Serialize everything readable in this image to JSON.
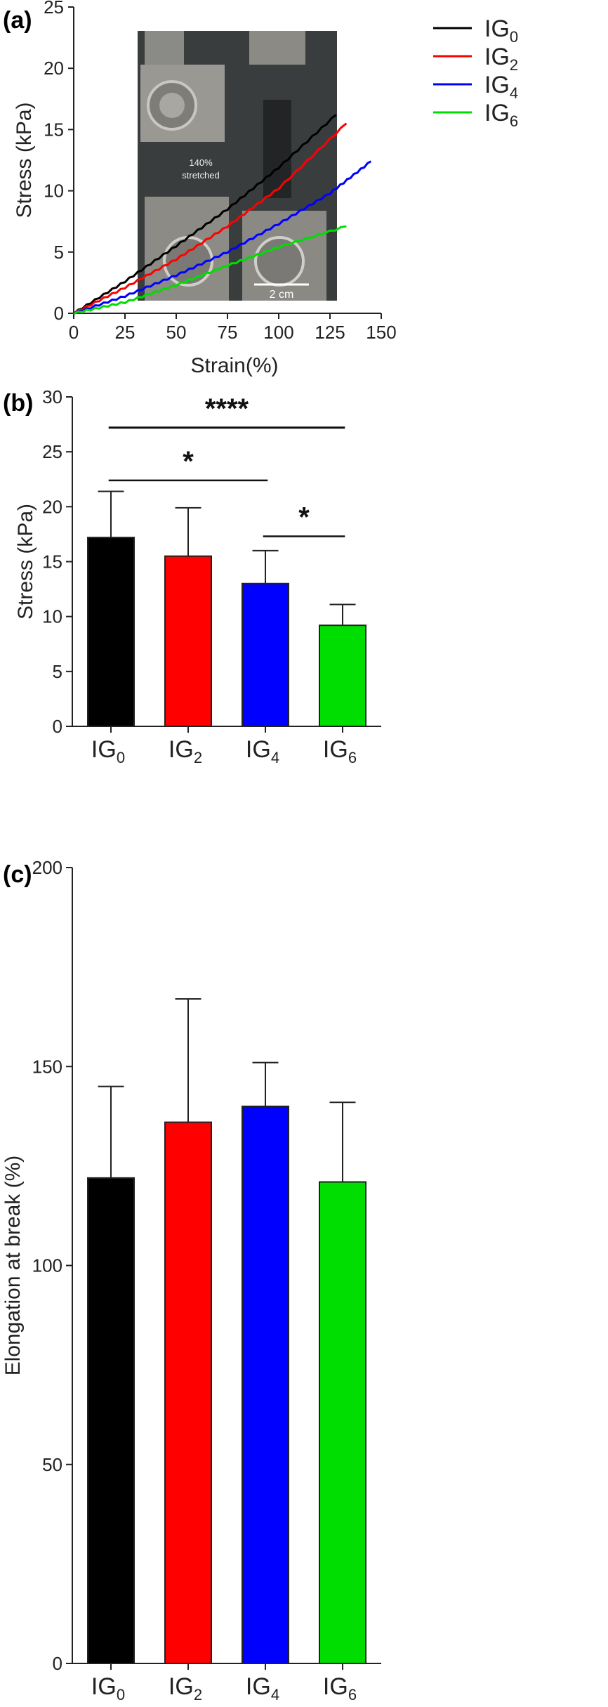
{
  "colors": {
    "IG0": "#000000",
    "IG2": "#ff0000",
    "IG4": "#0000ff",
    "IG6": "#00dd00"
  },
  "panels": {
    "a": {
      "label": "(a)"
    },
    "b": {
      "label": "(b)"
    },
    "c": {
      "label": "(c)"
    }
  },
  "inset": {
    "caption_line1": "140%",
    "caption_line2": "stretched",
    "scale_label": "2 cm"
  },
  "chart_data": [
    {
      "type": "line",
      "xlabel": "Strain(%)",
      "ylabel": "Stress (kPa)",
      "xlim": [
        0,
        150
      ],
      "ylim": [
        0,
        25
      ],
      "xticks": [
        0,
        25,
        50,
        75,
        100,
        125,
        150
      ],
      "yticks": [
        0,
        5,
        10,
        15,
        20,
        25
      ],
      "legend_position": "top-right",
      "series": [
        {
          "name_base": "IG",
          "name_sub": "0",
          "color": "#000000",
          "x": [
            0,
            25,
            50,
            75,
            100,
            128
          ],
          "y": [
            0,
            2.6,
            5.5,
            8.5,
            11.9,
            16.2
          ]
        },
        {
          "name_base": "IG",
          "name_sub": "2",
          "color": "#ff0000",
          "x": [
            0,
            25,
            50,
            75,
            100,
            133
          ],
          "y": [
            0,
            2.1,
            4.4,
            7.1,
            10.2,
            15.5
          ]
        },
        {
          "name_base": "IG",
          "name_sub": "4",
          "color": "#0000ff",
          "x": [
            0,
            25,
            50,
            75,
            100,
            125,
            145
          ],
          "y": [
            0,
            1.4,
            3.1,
            5.0,
            7.3,
            9.8,
            12.4
          ]
        },
        {
          "name_base": "IG",
          "name_sub": "6",
          "color": "#00dd00",
          "x": [
            0,
            25,
            50,
            75,
            100,
            133
          ],
          "y": [
            0,
            0.9,
            2.3,
            3.9,
            5.4,
            7.1
          ]
        }
      ]
    },
    {
      "type": "bar",
      "ylabel": "Stress (kPa)",
      "ylim": [
        0,
        30
      ],
      "yticks": [
        0,
        5,
        10,
        15,
        20,
        25,
        30
      ],
      "categories": [
        {
          "base": "IG",
          "sub": "0"
        },
        {
          "base": "IG",
          "sub": "2"
        },
        {
          "base": "IG",
          "sub": "4"
        },
        {
          "base": "IG",
          "sub": "6"
        }
      ],
      "values": [
        17.2,
        15.5,
        13.0,
        9.2
      ],
      "errors": [
        4.2,
        4.4,
        3.0,
        1.9
      ],
      "bar_colors": [
        "#000000",
        "#ff0000",
        "#0000ff",
        "#00dd00"
      ],
      "significance": [
        {
          "from": 0,
          "to": 3,
          "label": "****",
          "y": 27.2
        },
        {
          "from": 0,
          "to": 2,
          "label": "*",
          "y": 22.4
        },
        {
          "from": 2,
          "to": 3,
          "label": "*",
          "y": 17.3
        }
      ]
    },
    {
      "type": "bar",
      "ylabel": "Elongation at break  (%)",
      "ylim": [
        0,
        200
      ],
      "yticks": [
        0,
        50,
        100,
        150,
        200
      ],
      "categories": [
        {
          "base": "IG",
          "sub": "0"
        },
        {
          "base": "IG",
          "sub": "2"
        },
        {
          "base": "IG",
          "sub": "4"
        },
        {
          "base": "IG",
          "sub": "6"
        }
      ],
      "values": [
        122,
        136,
        140,
        121
      ],
      "errors": [
        23,
        31,
        11,
        20
      ],
      "bar_colors": [
        "#000000",
        "#ff0000",
        "#0000ff",
        "#00dd00"
      ]
    }
  ]
}
